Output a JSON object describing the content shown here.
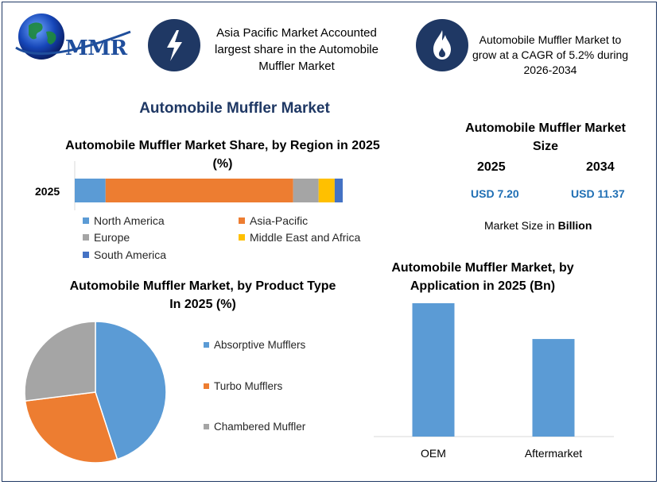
{
  "logo": {
    "text": "MMR"
  },
  "header": {
    "box1_text": "Asia Pacific Market Accounted largest share in the Automobile Muffler Market",
    "box2_text": "Automobile Muffler Market to grow at a CAGR of 5.2% during 2026-2034",
    "box1_icon": "lightning-icon",
    "box2_icon": "flame-icon",
    "badge_color": "#1f3864"
  },
  "main_title": "Automobile Muffler Market",
  "market_size": {
    "title": "Automobile Muffler Market Size",
    "year1": "2025",
    "year2": "2034",
    "value1": "USD 7.20",
    "value2": "USD 11.37",
    "note_prefix": "Market Size in ",
    "note_bold": "Billion"
  },
  "chart_data": [
    {
      "type": "bar",
      "orientation": "horizontal-stacked",
      "title": "Automobile Muffler Market Share, by Region in 2025 (%)",
      "categories": [
        "2025"
      ],
      "series": [
        {
          "name": "North America",
          "values": [
            11.5
          ],
          "color": "#5b9bd5"
        },
        {
          "name": "Asia-Pacific",
          "values": [
            70
          ],
          "color": "#ed7d31"
        },
        {
          "name": "Europe",
          "values": [
            9.5
          ],
          "color": "#a5a5a5"
        },
        {
          "name": "Middle East and Africa",
          "values": [
            6
          ],
          "color": "#ffc000"
        },
        {
          "name": "South America",
          "values": [
            3
          ],
          "color": "#4472c4"
        }
      ],
      "xlim": [
        0,
        100
      ],
      "legend": "bottom"
    },
    {
      "type": "pie",
      "title": "Automobile Muffler Market, by Product Type In 2025 (%)",
      "labels": [
        "Absorptive Mufflers",
        "Turbo Mufflers",
        "Chambered Muffler"
      ],
      "values": [
        45,
        28,
        27
      ],
      "colors": [
        "#5b9bd5",
        "#ed7d31",
        "#a5a5a5"
      ],
      "legend": "right"
    },
    {
      "type": "bar",
      "title": "Automobile Muffler Market, by Application in 2025 (Bn)",
      "categories": [
        "OEM",
        "Aftermarket"
      ],
      "values": [
        4.1,
        3.0
      ],
      "color": "#5b9bd5",
      "ylim": [
        0,
        4.1
      ]
    }
  ]
}
